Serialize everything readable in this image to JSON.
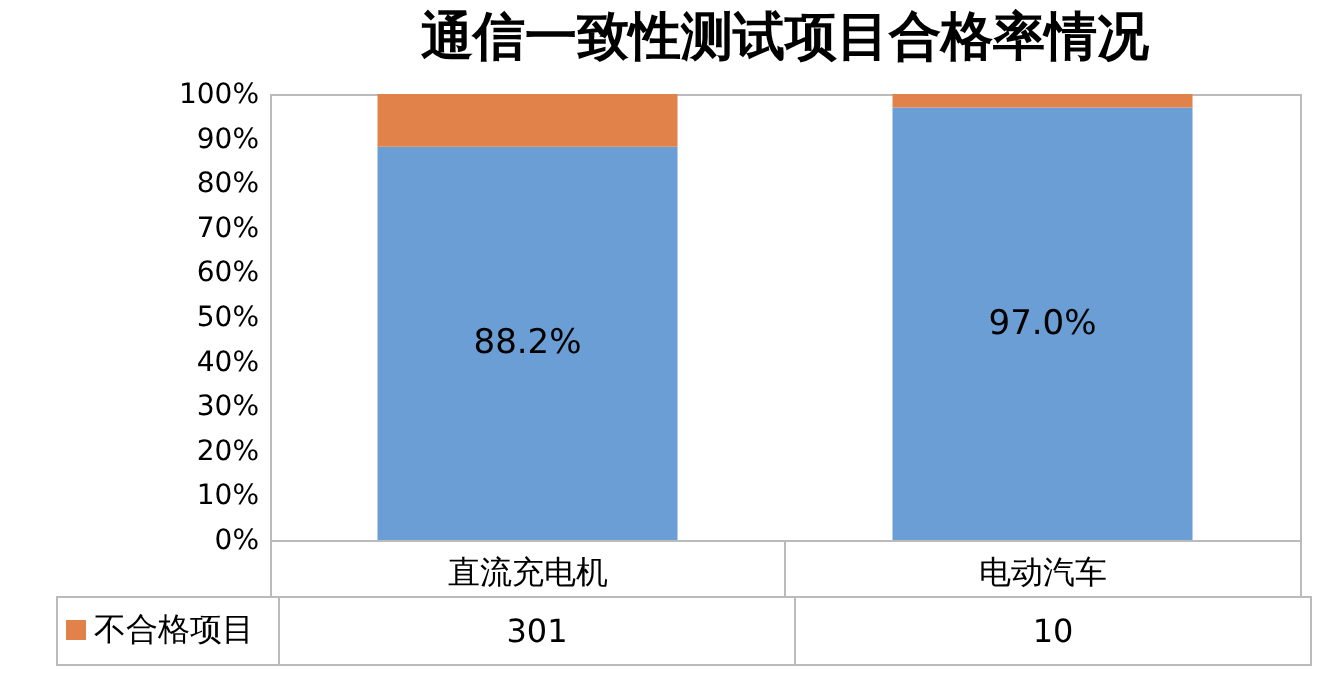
{
  "chart_data": {
    "type": "bar",
    "title": "通信一致性测试项目合格率情况",
    "categories": [
      "直流充电机",
      "电动汽车"
    ],
    "stacked": true,
    "series": [
      {
        "color": "#6a9ed4",
        "values": [
          88.2,
          97.0
        ],
        "value_labels": [
          "88.2%",
          "97.0%"
        ]
      },
      {
        "name": "不合格项目",
        "color": "#e0824a",
        "values": [
          11.8,
          3.0
        ]
      }
    ],
    "ylim": [
      0,
      100
    ],
    "yticks": [
      {
        "value": 0,
        "label": "0%"
      },
      {
        "value": 10,
        "label": "10%"
      },
      {
        "value": 20,
        "label": "20%"
      },
      {
        "value": 30,
        "label": "30%"
      },
      {
        "value": 40,
        "label": "40%"
      },
      {
        "value": 50,
        "label": "50%"
      },
      {
        "value": 60,
        "label": "60%"
      },
      {
        "value": 70,
        "label": "70%"
      },
      {
        "value": 80,
        "label": "80%"
      },
      {
        "value": 90,
        "label": "90%"
      },
      {
        "value": 100,
        "label": "100%"
      }
    ],
    "grid": false,
    "legend": "bottom",
    "annotations": [
      "301",
      "10"
    ]
  }
}
